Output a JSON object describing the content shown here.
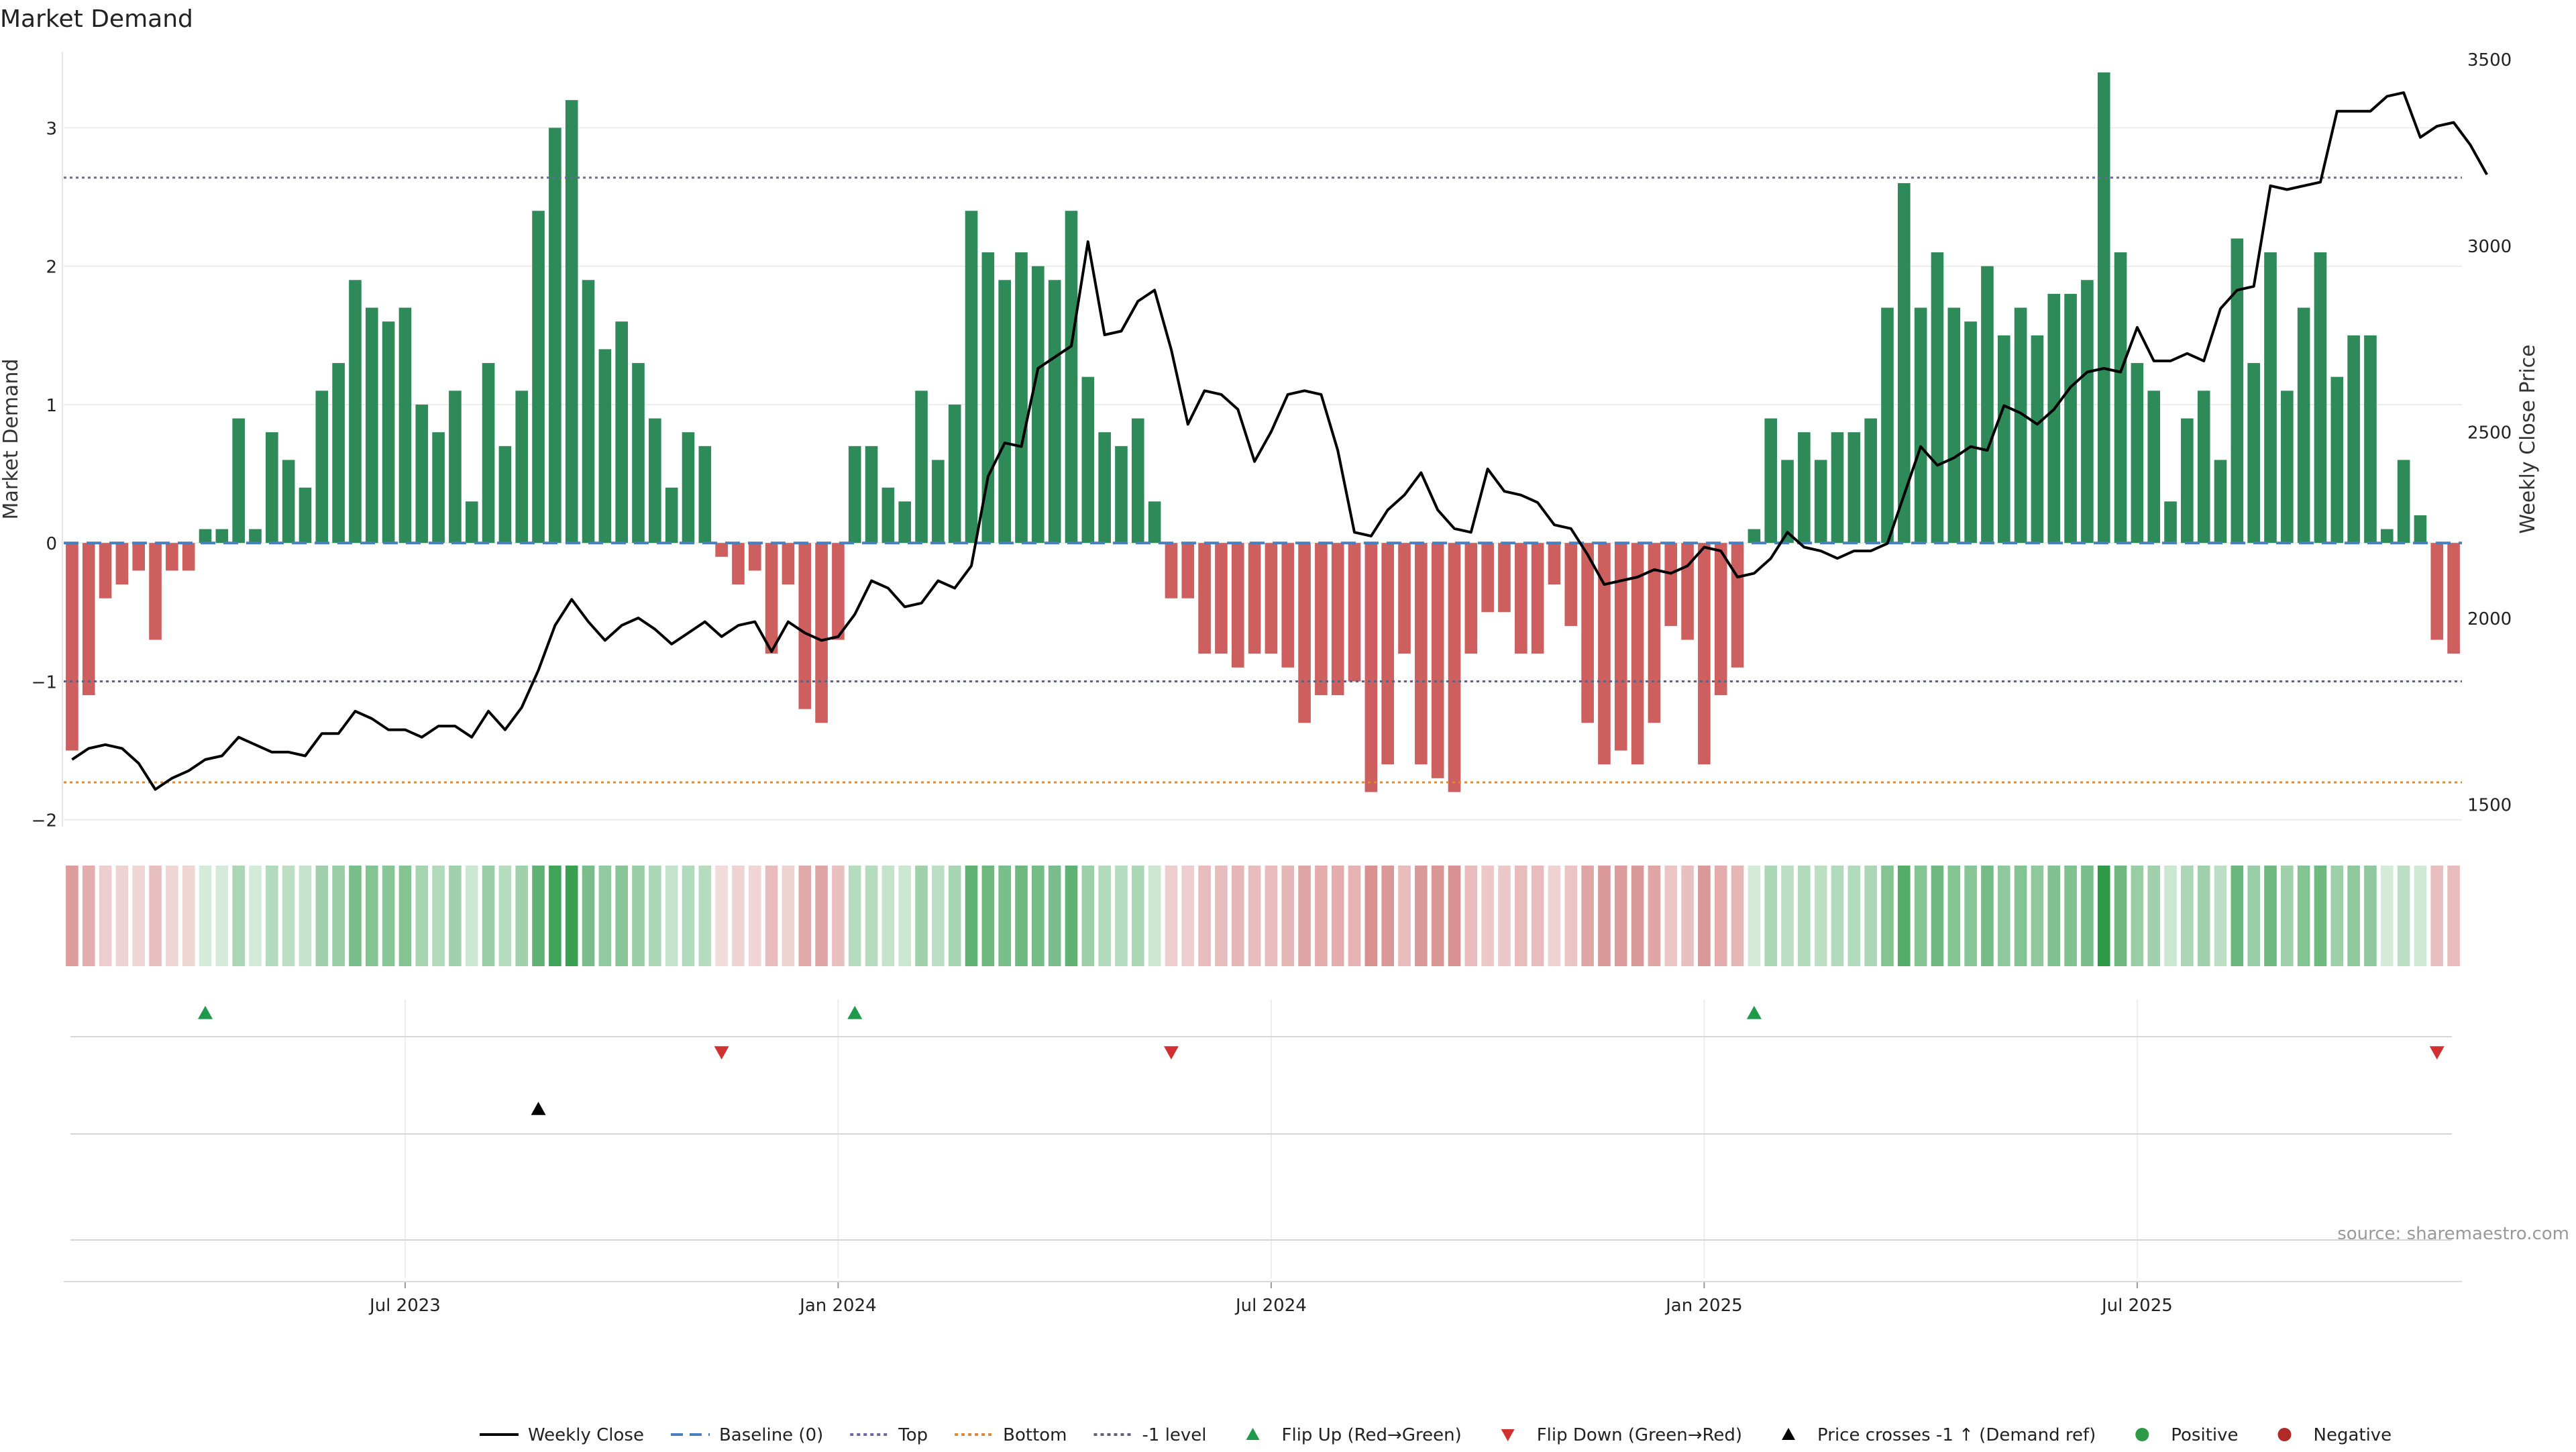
{
  "chart_data": {
    "type": "bar",
    "title": "Market Demand",
    "ylabel": "Market Demand",
    "y2label": "Weekly Close Price",
    "ylim": [
      -2.05,
      3.55
    ],
    "y2lim": [
      1440,
      3520
    ],
    "yticks": [
      "3",
      "2",
      "1",
      "0",
      "−1",
      "−2"
    ],
    "yticks_values": [
      3,
      2,
      1,
      0,
      -1,
      -2
    ],
    "y2ticks": [
      "3500",
      "3000",
      "2500",
      "2000",
      "1500"
    ],
    "y2ticks_values": [
      3500,
      3000,
      2500,
      2000,
      1500
    ],
    "xticks": [
      "Jul 2023",
      "Jan 2024",
      "Jul 2024",
      "Jan 2025",
      "Jul 2025"
    ],
    "xticks_week_index": [
      20,
      46,
      72,
      98,
      124
    ],
    "reference_lines": {
      "top": 2.64,
      "bottom": -1.73,
      "neg_one": -1.0,
      "baseline": 0
    },
    "demand": [
      -1.5,
      -1.1,
      -0.4,
      -0.3,
      -0.2,
      -0.7,
      -0.2,
      -0.2,
      0.1,
      0.1,
      0.9,
      0.1,
      0.8,
      0.6,
      0.4,
      1.1,
      1.3,
      1.9,
      1.7,
      1.6,
      1.7,
      1.0,
      0.8,
      1.1,
      0.3,
      1.3,
      0.7,
      1.1,
      2.4,
      3.0,
      3.2,
      1.9,
      1.4,
      1.6,
      1.3,
      0.9,
      0.4,
      0.8,
      0.7,
      -0.1,
      -0.3,
      -0.2,
      -0.8,
      -0.3,
      -1.2,
      -1.3,
      -0.7,
      0.7,
      0.7,
      0.4,
      0.3,
      1.1,
      0.6,
      1.0,
      2.4,
      2.1,
      1.9,
      2.1,
      2.0,
      1.9,
      2.4,
      1.2,
      0.8,
      0.7,
      0.9,
      0.3,
      -0.4,
      -0.4,
      -0.8,
      -0.8,
      -0.9,
      -0.8,
      -0.8,
      -0.9,
      -1.3,
      -1.1,
      -1.1,
      -1.0,
      -1.8,
      -1.6,
      -0.8,
      -1.6,
      -1.7,
      -1.8,
      -0.8,
      -0.5,
      -0.5,
      -0.8,
      -0.8,
      -0.3,
      -0.6,
      -1.3,
      -1.6,
      -1.5,
      -1.6,
      -1.3,
      -0.6,
      -0.7,
      -1.6,
      -1.1,
      -0.9,
      0.1,
      0.9,
      0.6,
      0.8,
      0.6,
      0.8,
      0.8,
      0.9,
      1.7,
      2.6,
      1.7,
      2.1,
      1.7,
      1.6,
      2.0,
      1.5,
      1.7,
      1.5,
      1.8,
      1.8,
      1.9,
      3.4,
      2.1,
      1.3,
      1.1,
      0.3,
      0.9,
      1.1,
      0.6,
      2.2,
      1.3,
      2.1,
      1.1,
      1.7,
      2.1,
      1.2,
      1.5,
      1.5,
      0.1,
      0.6,
      0.2,
      -0.7,
      -0.8
    ],
    "weekly_close": [
      1620,
      1650,
      1660,
      1650,
      1610,
      1540,
      1570,
      1590,
      1620,
      1630,
      1680,
      1660,
      1640,
      1640,
      1630,
      1690,
      1690,
      1750,
      1730,
      1700,
      1700,
      1680,
      1710,
      1710,
      1680,
      1750,
      1700,
      1760,
      1860,
      1980,
      2050,
      1990,
      1940,
      1980,
      2000,
      1970,
      1930,
      1960,
      1990,
      1950,
      1980,
      1990,
      1910,
      1990,
      1960,
      1940,
      1950,
      2010,
      2100,
      2080,
      2030,
      2040,
      2100,
      2080,
      2140,
      2380,
      2470,
      2460,
      2670,
      2700,
      2730,
      3010,
      2760,
      2770,
      2850,
      2880,
      2720,
      2520,
      2610,
      2600,
      2560,
      2420,
      2500,
      2600,
      2610,
      2600,
      2450,
      2230,
      2220,
      2290,
      2330,
      2390,
      2290,
      2240,
      2230,
      2400,
      2340,
      2330,
      2310,
      2250,
      2240,
      2170,
      2090,
      2100,
      2110,
      2130,
      2120,
      2140,
      2190,
      2180,
      2110,
      2120,
      2160,
      2230,
      2190,
      2180,
      2160,
      2180,
      2180,
      2200,
      2330,
      2460,
      2410,
      2430,
      2460,
      2450,
      2570,
      2550,
      2520,
      2560,
      2620,
      2660,
      2670,
      2660,
      2780,
      2690,
      2690,
      2710,
      2690,
      2830,
      2880,
      2890,
      3160,
      3150,
      3160,
      3170,
      3360,
      3360,
      3360,
      3400,
      3410,
      3290,
      3320,
      3330,
      3270,
      3190
    ],
    "heat_strip": {
      "label": "demand heat strip"
    },
    "flip_up_week_index": [
      8,
      47,
      101
    ],
    "flip_down_week_index": [
      39,
      66,
      142
    ],
    "price_cross_week_index": [
      28
    ],
    "source_note": "source: sharemaestro.com",
    "legend": {
      "position": "bottom-center",
      "items": [
        {
          "label": "Weekly Close",
          "type": "line",
          "color": "#000000",
          "dash": "solid"
        },
        {
          "label": "Baseline (0)",
          "type": "line",
          "color": "#4a7fbf",
          "dash": "dashed"
        },
        {
          "label": "Top",
          "type": "line",
          "color": "#6a6aa0",
          "dash": "dotted"
        },
        {
          "label": "Bottom",
          "type": "line",
          "color": "#e08a2e",
          "dash": "dotted"
        },
        {
          "label": "-1 level",
          "type": "line",
          "color": "#606080",
          "dash": "dotted"
        },
        {
          "label": "Flip Up (Red→Green)",
          "type": "tri-up",
          "color": "#1f9a4a"
        },
        {
          "label": "Flip Down (Green→Red)",
          "type": "tri-down",
          "color": "#d03030"
        },
        {
          "label": "Price crosses -1 ↑ (Demand ref)",
          "type": "tri-up",
          "color": "#000000"
        },
        {
          "label": "Positive",
          "type": "dot",
          "color": "#2e9a48"
        },
        {
          "label": "Negative",
          "type": "dot",
          "color": "#b02a2a"
        }
      ]
    },
    "colors": {
      "positive_bar": "#2f8a5a",
      "negative_bar": "#cd5f5f",
      "price_line": "#000000",
      "baseline": "#4a7fbf",
      "top_line": "#6a6aa0",
      "bottom_line": "#e08a2e",
      "neg_one_line": "#606080",
      "grid": "#ececec"
    }
  }
}
